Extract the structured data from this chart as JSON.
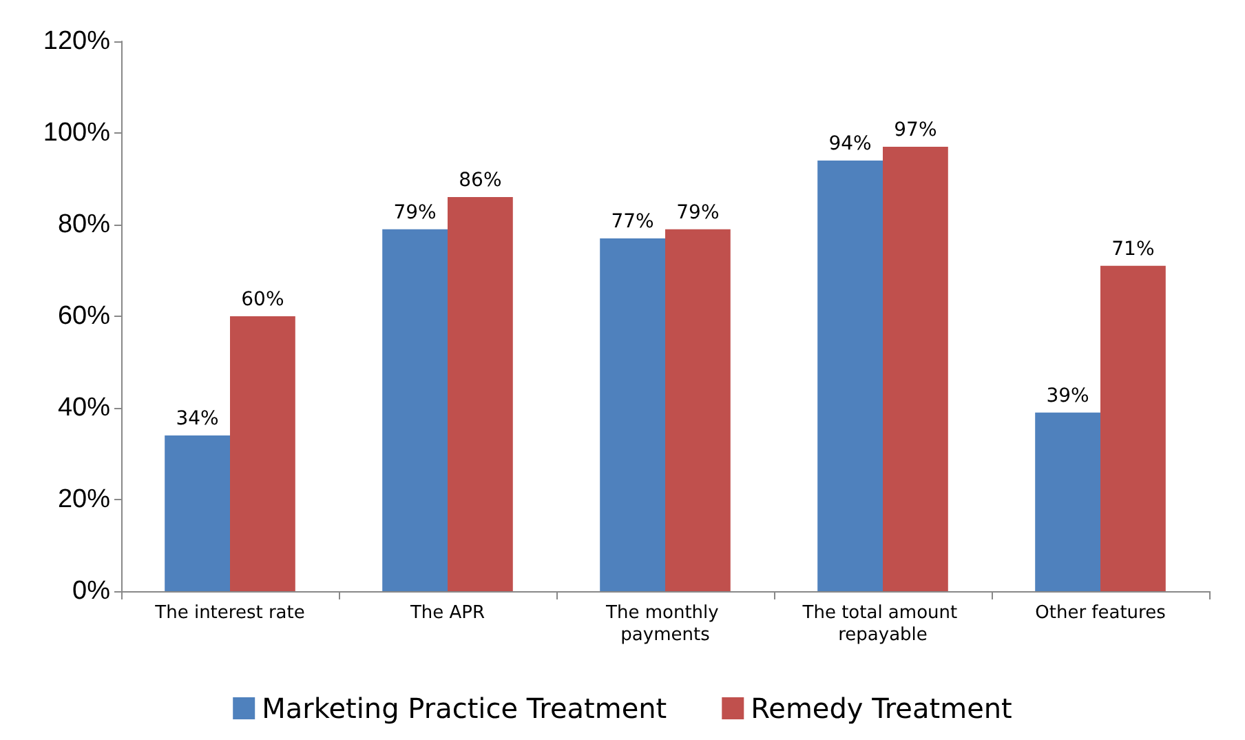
{
  "chart_data": {
    "type": "bar",
    "categories": [
      "The interest rate",
      "The APR",
      "The monthly payments",
      "The total amount repayable",
      "Other features"
    ],
    "series": [
      {
        "name": "Marketing Practice Treatment",
        "color": "#4f81bd",
        "values": [
          34,
          79,
          77,
          94,
          39
        ],
        "value_labels": [
          "34%",
          "79%",
          "77%",
          "94%",
          "39%"
        ]
      },
      {
        "name": "Remedy Treatment",
        "color": "#c0504d",
        "values": [
          60,
          86,
          79,
          97,
          71
        ],
        "value_labels": [
          "60%",
          "86%",
          "79%",
          "97%",
          "71%"
        ]
      }
    ],
    "ylim": [
      0,
      120
    ],
    "yticks": [
      {
        "value": 0,
        "label": "0%"
      },
      {
        "value": 20,
        "label": "20%"
      },
      {
        "value": 40,
        "label": "40%"
      },
      {
        "value": 60,
        "label": "60%"
      },
      {
        "value": 80,
        "label": "80%"
      },
      {
        "value": 100,
        "label": "100%"
      },
      {
        "value": 120,
        "label": "120%"
      }
    ],
    "grid": false,
    "legend": "bottom"
  }
}
